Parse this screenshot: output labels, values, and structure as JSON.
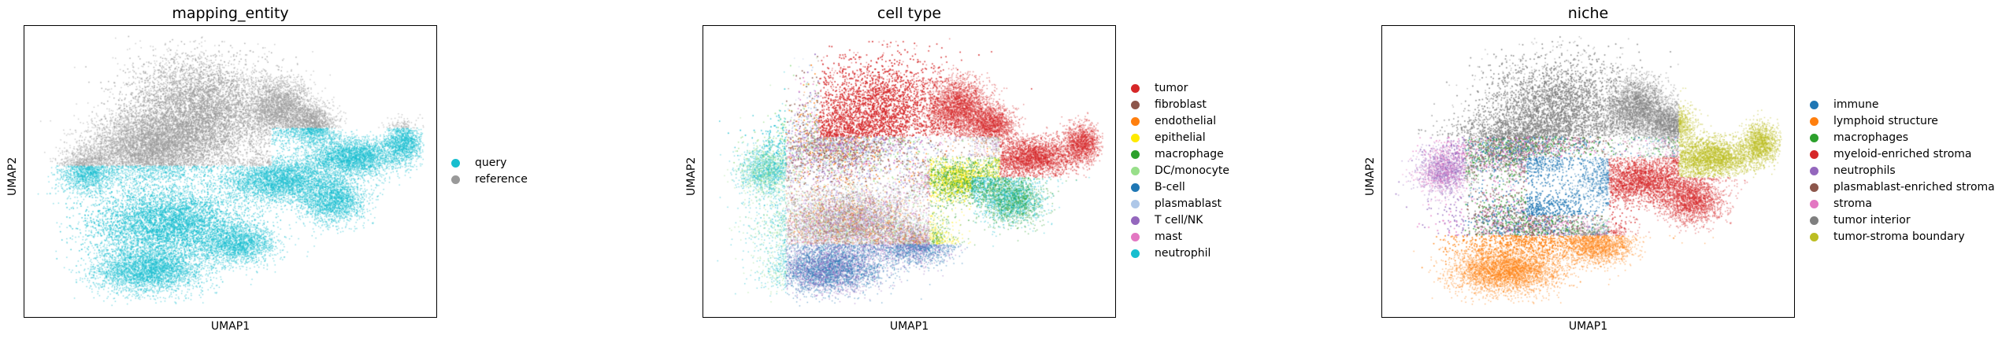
{
  "chart_data": [
    {
      "type": "scatter",
      "title": "mapping_entity",
      "xlabel": "UMAP1",
      "ylabel": "UMAP2",
      "grid": false,
      "legend_position": "right",
      "series": [
        {
          "name": "query",
          "color": "#17becf"
        },
        {
          "name": "reference",
          "color": "#999999"
        }
      ]
    },
    {
      "type": "scatter",
      "title": "cell type",
      "xlabel": "UMAP1",
      "ylabel": "UMAP2",
      "grid": false,
      "legend_position": "right",
      "series": [
        {
          "name": "tumor",
          "color": "#d62728"
        },
        {
          "name": "fibroblast",
          "color": "#8c564b"
        },
        {
          "name": "endothelial",
          "color": "#ff7f0e"
        },
        {
          "name": "epithelial",
          "color": "#ffea00"
        },
        {
          "name": "macrophage",
          "color": "#2ca02c"
        },
        {
          "name": "DC/monocyte",
          "color": "#98df8a"
        },
        {
          "name": "B-cell",
          "color": "#1f77b4"
        },
        {
          "name": "plasmablast",
          "color": "#aec7e8"
        },
        {
          "name": "T cell/NK",
          "color": "#9467bd"
        },
        {
          "name": "mast",
          "color": "#e377c2"
        },
        {
          "name": "neutrophil",
          "color": "#17becf"
        }
      ]
    },
    {
      "type": "scatter",
      "title": "niche",
      "xlabel": "UMAP1",
      "ylabel": "UMAP2",
      "grid": false,
      "legend_position": "right",
      "series": [
        {
          "name": "immune",
          "color": "#1f77b4"
        },
        {
          "name": "lymphoid structure",
          "color": "#ff7f0e"
        },
        {
          "name": "macrophages",
          "color": "#2ca02c"
        },
        {
          "name": "myeloid-enriched stroma",
          "color": "#d62728"
        },
        {
          "name": "neutrophils",
          "color": "#9467bd"
        },
        {
          "name": "plasmablast-enriched stroma",
          "color": "#8c564b"
        },
        {
          "name": "stroma",
          "color": "#e377c2"
        },
        {
          "name": "tumor interior",
          "color": "#7f7f7f"
        },
        {
          "name": "tumor-stroma boundary",
          "color": "#bcbd22"
        }
      ]
    }
  ]
}
